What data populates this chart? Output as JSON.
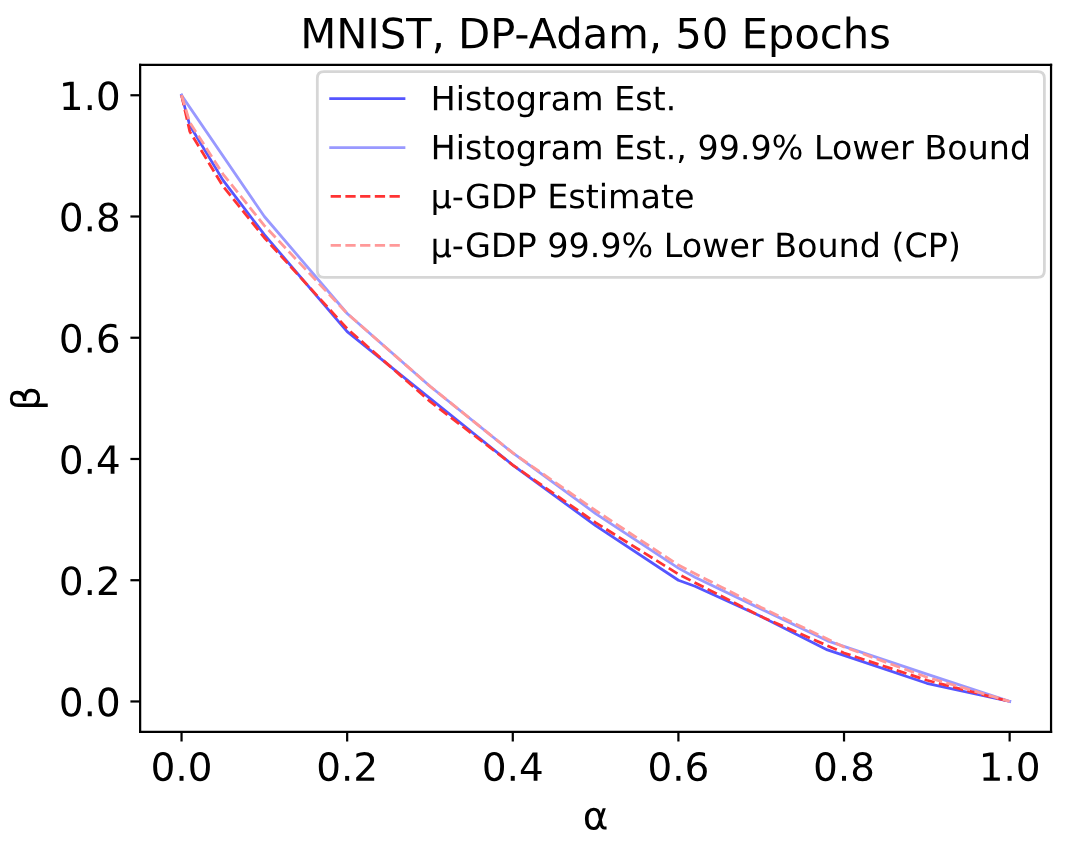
{
  "chart_data": {
    "type": "line",
    "title": "MNIST, DP-Adam, 50 Epochs",
    "xlabel": "α",
    "ylabel": "β",
    "xlim": [
      -0.05,
      1.05
    ],
    "ylim": [
      -0.05,
      1.05
    ],
    "xticks": [
      {
        "value": 0,
        "label": "0.0"
      },
      0.2,
      0.4,
      0.6,
      0.8,
      {
        "value": 1,
        "label": "1.0"
      }
    ],
    "yticks": [
      {
        "value": 0,
        "label": "0.0"
      },
      0.2,
      0.4,
      0.6,
      0.8,
      {
        "value": 1,
        "label": "1.0"
      }
    ],
    "grid": false,
    "legend": "top right",
    "marker": "none",
    "series": [
      {
        "name": "Histogram Est.",
        "color": "#5555ff",
        "line_style": "solid",
        "x": [
          0,
          0.01,
          0.05,
          0.1,
          0.2,
          0.3,
          0.4,
          0.5,
          0.6,
          0.62,
          0.7,
          0.78,
          0.9,
          1
        ],
        "values": [
          1,
          0.95,
          0.86,
          0.77,
          0.61,
          0.5,
          0.39,
          0.29,
          0.2,
          0.19,
          0.14,
          0.085,
          0.03,
          0
        ]
      },
      {
        "name": "Histogram Est., 99.9% Lower Bound",
        "color": "#9999ff",
        "line_style": "solid",
        "x": [
          0,
          0.1,
          0.2,
          0.3,
          0.4,
          0.5,
          0.6,
          0.62,
          0.78,
          0.9,
          1
        ],
        "values": [
          1,
          0.8,
          0.64,
          0.52,
          0.41,
          0.31,
          0.22,
          0.205,
          0.1,
          0.045,
          0
        ]
      },
      {
        "name": "μ-GDP Estimate",
        "color": "#ff3333",
        "line_style": "dashed",
        "x": [
          0,
          0.01,
          0.05,
          0.1,
          0.2,
          0.3,
          0.4,
          0.5,
          0.6,
          0.7,
          0.8,
          0.9,
          1
        ],
        "values": [
          1,
          0.94,
          0.85,
          0.765,
          0.615,
          0.495,
          0.39,
          0.295,
          0.21,
          0.14,
          0.08,
          0.035,
          0
        ]
      },
      {
        "name": "μ-GDP 99.9% Lower Bound (CP)",
        "color": "#ff9999",
        "line_style": "dashed",
        "x": [
          0,
          0.01,
          0.05,
          0.1,
          0.2,
          0.3,
          0.4,
          0.5,
          0.6,
          0.7,
          0.8,
          0.9,
          1
        ],
        "values": [
          1,
          0.955,
          0.87,
          0.785,
          0.64,
          0.52,
          0.41,
          0.315,
          0.225,
          0.155,
          0.09,
          0.04,
          0
        ]
      }
    ]
  }
}
